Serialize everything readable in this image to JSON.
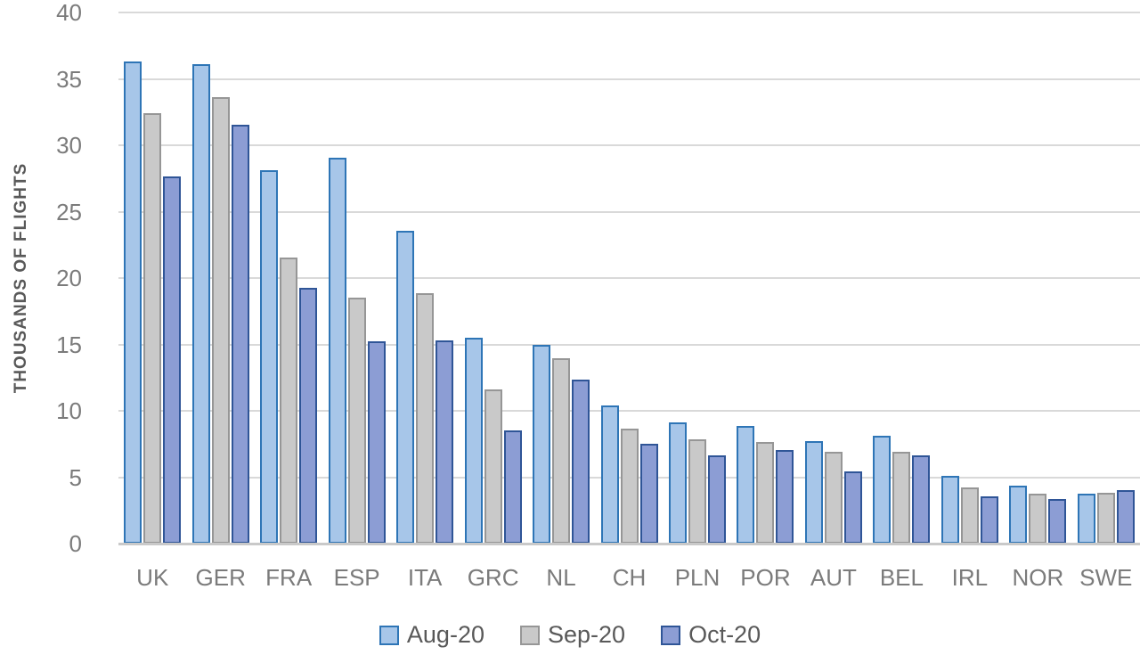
{
  "chart_data": {
    "type": "bar",
    "title": "",
    "xlabel": "",
    "ylabel": "THOUSANDS OF FLIGHTS",
    "ylim": [
      0,
      40
    ],
    "ytick_step": 5,
    "grid": true,
    "legend_position": "bottom",
    "categories": [
      "UK",
      "GER",
      "FRA",
      "ESP",
      "ITA",
      "GRC",
      "NL",
      "CH",
      "PLN",
      "POR",
      "AUT",
      "BEL",
      "IRL",
      "NOR",
      "SWE"
    ],
    "series": [
      {
        "name": "Aug-20",
        "fill": "#A7C6E9",
        "border": "#2E75B6",
        "values": [
          36.2,
          36.0,
          28.0,
          28.9,
          23.4,
          15.4,
          14.8,
          10.3,
          9.0,
          8.7,
          7.6,
          8.0,
          5.0,
          4.2,
          3.6
        ]
      },
      {
        "name": "Sep-20",
        "fill": "#C9C9C9",
        "border": "#969696",
        "values": [
          32.3,
          33.5,
          21.4,
          18.4,
          18.7,
          11.5,
          13.8,
          8.5,
          7.7,
          7.5,
          6.8,
          6.8,
          4.1,
          3.6,
          3.7
        ]
      },
      {
        "name": "Oct-20",
        "fill": "#8C9DD4",
        "border": "#2F5597",
        "values": [
          27.5,
          31.4,
          19.1,
          15.1,
          15.2,
          8.4,
          12.2,
          7.4,
          6.5,
          6.9,
          5.3,
          6.5,
          3.4,
          3.2,
          3.9
        ]
      }
    ]
  },
  "colors": {
    "background": "#FFFFFF",
    "gridline": "#D9D9D9",
    "axis_line": "#C9C9C9",
    "tick_text": "#7B7B7B",
    "axis_title_text": "#595959",
    "legend_text": "#595959"
  }
}
